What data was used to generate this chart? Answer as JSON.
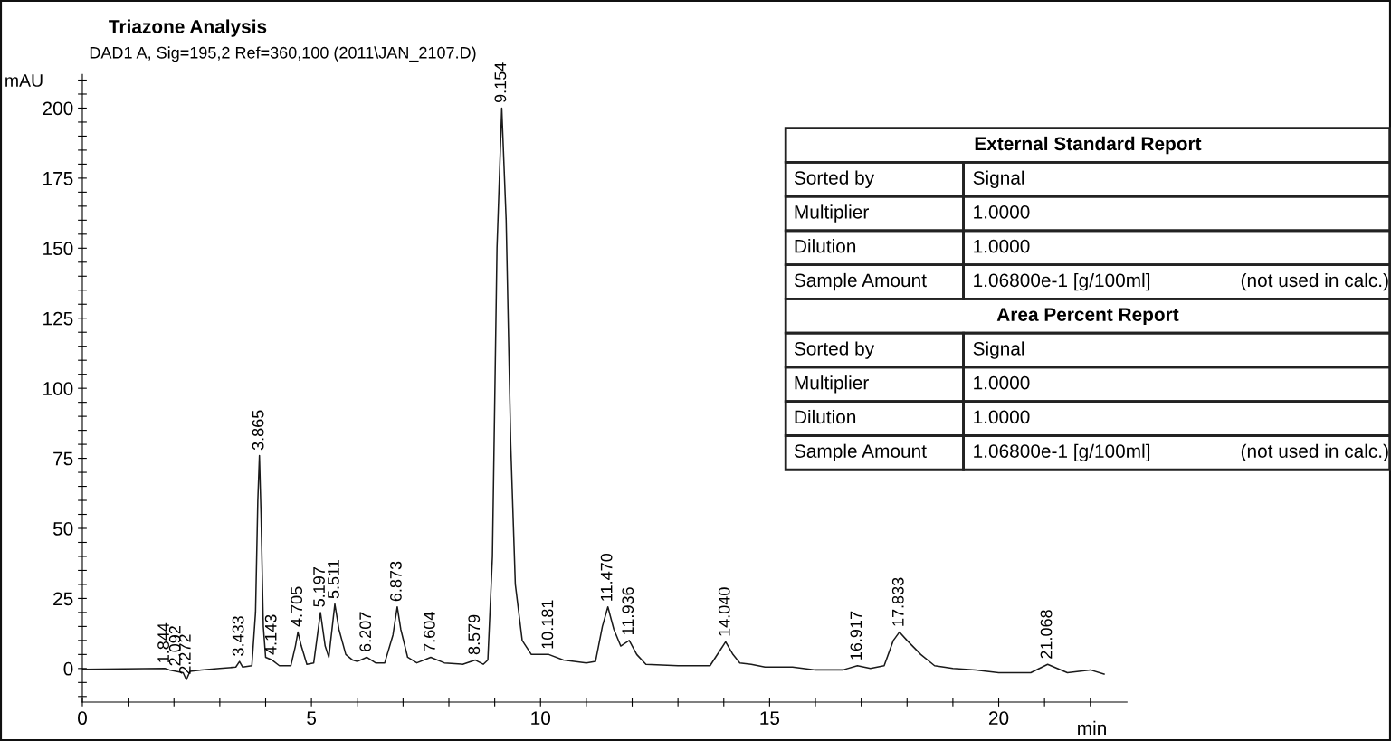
{
  "chart_data": [
    {
      "type": "line",
      "title": "Triazone Analysis",
      "subtitle": "DAD1 A, Sig=195,2 Ref=360,100 (2011\\JAN_2107.D)",
      "xlabel": "min",
      "ylabel": "mAU",
      "series": [
        {
          "color": "#1a1a1a",
          "x": [
            0,
            1.8,
            1.9,
            2.05,
            2.2,
            2.27,
            2.35,
            2.6,
            3.0,
            3.35,
            3.43,
            3.5,
            3.7,
            3.78,
            3.83,
            3.865,
            3.9,
            3.95,
            4.0,
            4.143,
            4.3,
            4.55,
            4.65,
            4.705,
            4.78,
            4.9,
            5.05,
            5.197,
            5.3,
            5.38,
            5.511,
            5.6,
            5.75,
            5.9,
            6.0,
            6.207,
            6.4,
            6.6,
            6.78,
            6.873,
            6.95,
            7.1,
            7.3,
            7.604,
            7.9,
            8.3,
            8.579,
            8.75,
            8.85,
            8.95,
            9.05,
            9.154,
            9.25,
            9.35,
            9.45,
            9.6,
            9.8,
            10.181,
            10.5,
            11.0,
            11.2,
            11.35,
            11.47,
            11.6,
            11.75,
            11.936,
            12.1,
            12.3,
            13.0,
            13.7,
            13.9,
            14.04,
            14.2,
            14.35,
            14.6,
            14.9,
            15.5,
            16.0,
            16.6,
            16.917,
            17.2,
            17.5,
            17.7,
            17.833,
            18.0,
            18.3,
            18.6,
            19.0,
            19.5,
            20.0,
            20.7,
            21.068,
            21.5,
            22.0,
            22.3
          ],
          "values": [
            -0.3,
            0,
            -0.5,
            -1,
            -1.5,
            -4,
            -1,
            -0.5,
            0,
            0.5,
            2.5,
            0.5,
            1,
            20,
            60,
            76,
            55,
            15,
            4,
            3,
            1,
            1,
            8,
            13,
            8,
            1.5,
            2,
            20,
            8,
            4,
            23,
            14,
            5,
            3,
            2.5,
            4,
            2,
            2,
            12,
            22,
            14,
            4,
            2,
            4,
            2,
            1.5,
            3,
            1.5,
            3,
            40,
            150,
            200,
            160,
            80,
            30,
            10,
            5,
            5,
            3,
            2,
            2.5,
            15,
            22,
            14,
            8,
            10,
            5,
            1.5,
            1,
            1,
            6,
            9.5,
            5,
            2,
            1.5,
            0.5,
            0.5,
            -0.5,
            -0.5,
            1,
            0,
            1,
            10,
            13,
            10,
            5,
            1,
            0,
            -0.5,
            -1.5,
            -1.5,
            1.5,
            -1.5,
            -0.5,
            -2
          ]
        }
      ],
      "xlim": [
        0,
        22.8
      ],
      "ylim": [
        -12,
        212
      ],
      "xticks": [
        0,
        {
          "value": 1,
          "label": null
        },
        {
          "value": 2,
          "label": null
        },
        {
          "value": 3,
          "label": null
        },
        {
          "value": 4,
          "label": null
        },
        5,
        {
          "value": 6,
          "label": null
        },
        {
          "value": 7,
          "label": null
        },
        {
          "value": 8,
          "label": null
        },
        {
          "value": 9,
          "label": null
        },
        10,
        {
          "value": 11,
          "label": null
        },
        {
          "value": 12,
          "label": null
        },
        {
          "value": 13,
          "label": null
        },
        {
          "value": 14,
          "label": null
        },
        15,
        {
          "value": 16,
          "label": null
        },
        {
          "value": 17,
          "label": null
        },
        {
          "value": 18,
          "label": null
        },
        {
          "value": 19,
          "label": null
        },
        20,
        {
          "value": 21,
          "label": null
        },
        {
          "value": 22,
          "label": null
        }
      ],
      "yticks": [
        {
          "value": -10,
          "label": null
        },
        {
          "value": -5,
          "label": null
        },
        0,
        {
          "value": 5,
          "label": null
        },
        {
          "value": 10,
          "label": null
        },
        {
          "value": 15,
          "label": null
        },
        {
          "value": 20,
          "label": null
        },
        25,
        {
          "value": 30,
          "label": null
        },
        {
          "value": 35,
          "label": null
        },
        {
          "value": 40,
          "label": null
        },
        {
          "value": 45,
          "label": null
        },
        50,
        {
          "value": 55,
          "label": null
        },
        {
          "value": 60,
          "label": null
        },
        {
          "value": 65,
          "label": null
        },
        {
          "value": 70,
          "label": null
        },
        75,
        {
          "value": 80,
          "label": null
        },
        {
          "value": 85,
          "label": null
        },
        {
          "value": 90,
          "label": null
        },
        {
          "value": 95,
          "label": null
        },
        100,
        {
          "value": 105,
          "label": null
        },
        {
          "value": 110,
          "label": null
        },
        {
          "value": 115,
          "label": null
        },
        {
          "value": 120,
          "label": null
        },
        125,
        {
          "value": 130,
          "label": null
        },
        {
          "value": 135,
          "label": null
        },
        {
          "value": 140,
          "label": null
        },
        {
          "value": 145,
          "label": null
        },
        150,
        {
          "value": 155,
          "label": null
        },
        {
          "value": 160,
          "label": null
        },
        {
          "value": 165,
          "label": null
        },
        {
          "value": 170,
          "label": null
        },
        175,
        {
          "value": 180,
          "label": null
        },
        {
          "value": 185,
          "label": null
        },
        {
          "value": 190,
          "label": null
        },
        {
          "value": 195,
          "label": null
        },
        200,
        {
          "value": 205,
          "label": null
        },
        {
          "value": 210,
          "label": null
        }
      ],
      "annotations": [
        {
          "text": "1.844",
          "x": 1.8,
          "y": 0
        },
        {
          "text": "2.092",
          "x": 2.05,
          "y": -1
        },
        {
          "text": "2.272",
          "x": 2.27,
          "y": -4
        },
        {
          "text": "3.433",
          "x": 3.43,
          "y": 2.5
        },
        {
          "text": "3.865",
          "x": 3.865,
          "y": 76
        },
        {
          "text": "4.143",
          "x": 4.143,
          "y": 3
        },
        {
          "text": "4.705",
          "x": 4.705,
          "y": 13
        },
        {
          "text": "5.197",
          "x": 5.197,
          "y": 20
        },
        {
          "text": "5.511",
          "x": 5.511,
          "y": 23
        },
        {
          "text": "6.207",
          "x": 6.207,
          "y": 4
        },
        {
          "text": "6.873",
          "x": 6.873,
          "y": 22
        },
        {
          "text": "7.604",
          "x": 7.604,
          "y": 4
        },
        {
          "text": "8.579",
          "x": 8.579,
          "y": 3
        },
        {
          "text": "9.154",
          "x": 9.154,
          "y": 200
        },
        {
          "text": "10.181",
          "x": 10.181,
          "y": 5
        },
        {
          "text": "11.470",
          "x": 11.47,
          "y": 22
        },
        {
          "text": "11.936",
          "x": 11.936,
          "y": 10
        },
        {
          "text": "14.040",
          "x": 14.04,
          "y": 9.5
        },
        {
          "text": "16.917",
          "x": 16.917,
          "y": 1
        },
        {
          "text": "17.833",
          "x": 17.833,
          "y": 13
        },
        {
          "text": "21.068",
          "x": 21.068,
          "y": 1.5
        }
      ]
    },
    {
      "type": "other",
      "annotations": [
        "External Standard Report",
        "Sorted by",
        "Signal",
        "Multiplier",
        "1.0000",
        "Dilution",
        "1.0000",
        "Sample Amount",
        "1.06800e-1 [g/100ml]",
        "(not used in calc.)",
        "Area Percent Report",
        "Sorted by",
        "Signal",
        "Multiplier",
        "1.0000",
        "Dilution",
        "1.0000",
        "Sample Amount",
        "1.06800e-1 [g/100ml]",
        "(not used in calc.)"
      ]
    }
  ]
}
